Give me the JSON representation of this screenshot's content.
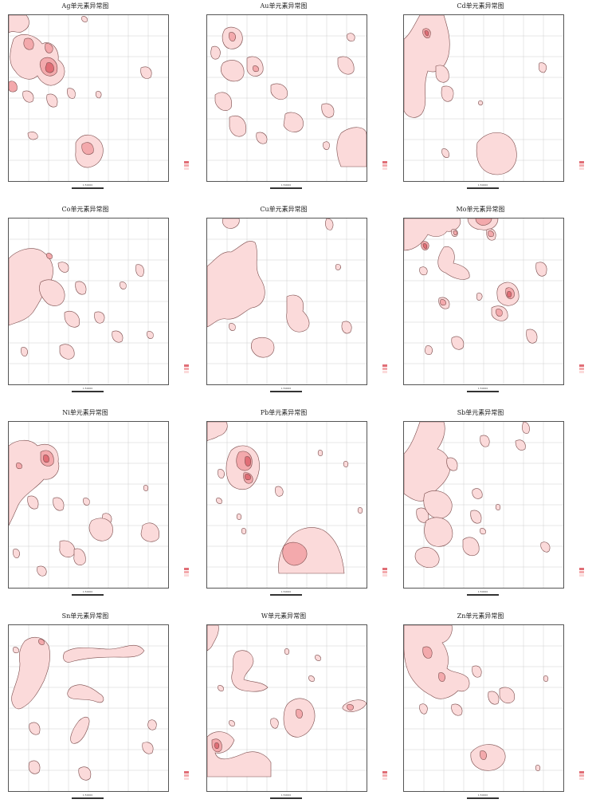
{
  "colors": {
    "level1": "#fbdada",
    "level2": "#f3a9ac",
    "level3": "#e06e76",
    "outline": "#7a4a4a",
    "grid": "#cfcfcf",
    "frame": "#555555"
  },
  "panels": [
    {
      "title": "Ag单元素异常图",
      "scale": "1:50000",
      "unit": "0 1 2 km",
      "legend": [
        "1.5",
        "2.0",
        "3.0"
      ]
    },
    {
      "title": "Au单元素异常图",
      "scale": "1:50000",
      "unit": "0 1 2 km",
      "legend": [
        "1.5",
        "2.0",
        "3.0"
      ]
    },
    {
      "title": "Cd单元素异常图",
      "scale": "1:50000",
      "unit": "0 1 2 km",
      "legend": [
        "1.5",
        "2.0",
        "3.0"
      ]
    },
    {
      "title": "Co单元素异常图",
      "scale": "1:50000",
      "unit": "0 1 2 km",
      "legend": [
        "1.5",
        "2.0",
        "3.0"
      ]
    },
    {
      "title": "Cu单元素异常图",
      "scale": "1:50000",
      "unit": "0 1 2 km",
      "legend": [
        "1.5",
        "2.0",
        "3.0"
      ]
    },
    {
      "title": "Mo单元素异常图",
      "scale": "1:50000",
      "unit": "0 1 2 km",
      "legend": [
        "1.5",
        "2.0",
        "3.0"
      ]
    },
    {
      "title": "Ni单元素异常图",
      "scale": "1:50000",
      "unit": "0 1 2 km",
      "legend": [
        "1.5",
        "2.0",
        "3.0"
      ]
    },
    {
      "title": "Pb单元素异常图",
      "scale": "1:50000",
      "unit": "0 1 2 km",
      "legend": [
        "1.5",
        "2.0",
        "3.0"
      ]
    },
    {
      "title": "Sb单元素异常图",
      "scale": "1:50000",
      "unit": "0 1 2 km",
      "legend": [
        "1.5",
        "2.0",
        "3.0"
      ]
    },
    {
      "title": "Sn单元素异常图",
      "scale": "1:50000",
      "unit": "0 1 2 km",
      "legend": [
        "1.5",
        "2.0",
        "3.0"
      ]
    },
    {
      "title": "W单元素异常图",
      "scale": "1:50000",
      "unit": "0 1 2 km",
      "legend": [
        "1.5",
        "2.0",
        "3.0"
      ]
    },
    {
      "title": "Zn单元素异常图",
      "scale": "1:50000",
      "unit": "0 1 2 km",
      "legend": [
        "1.5",
        "2.0",
        "3.0"
      ]
    }
  ]
}
